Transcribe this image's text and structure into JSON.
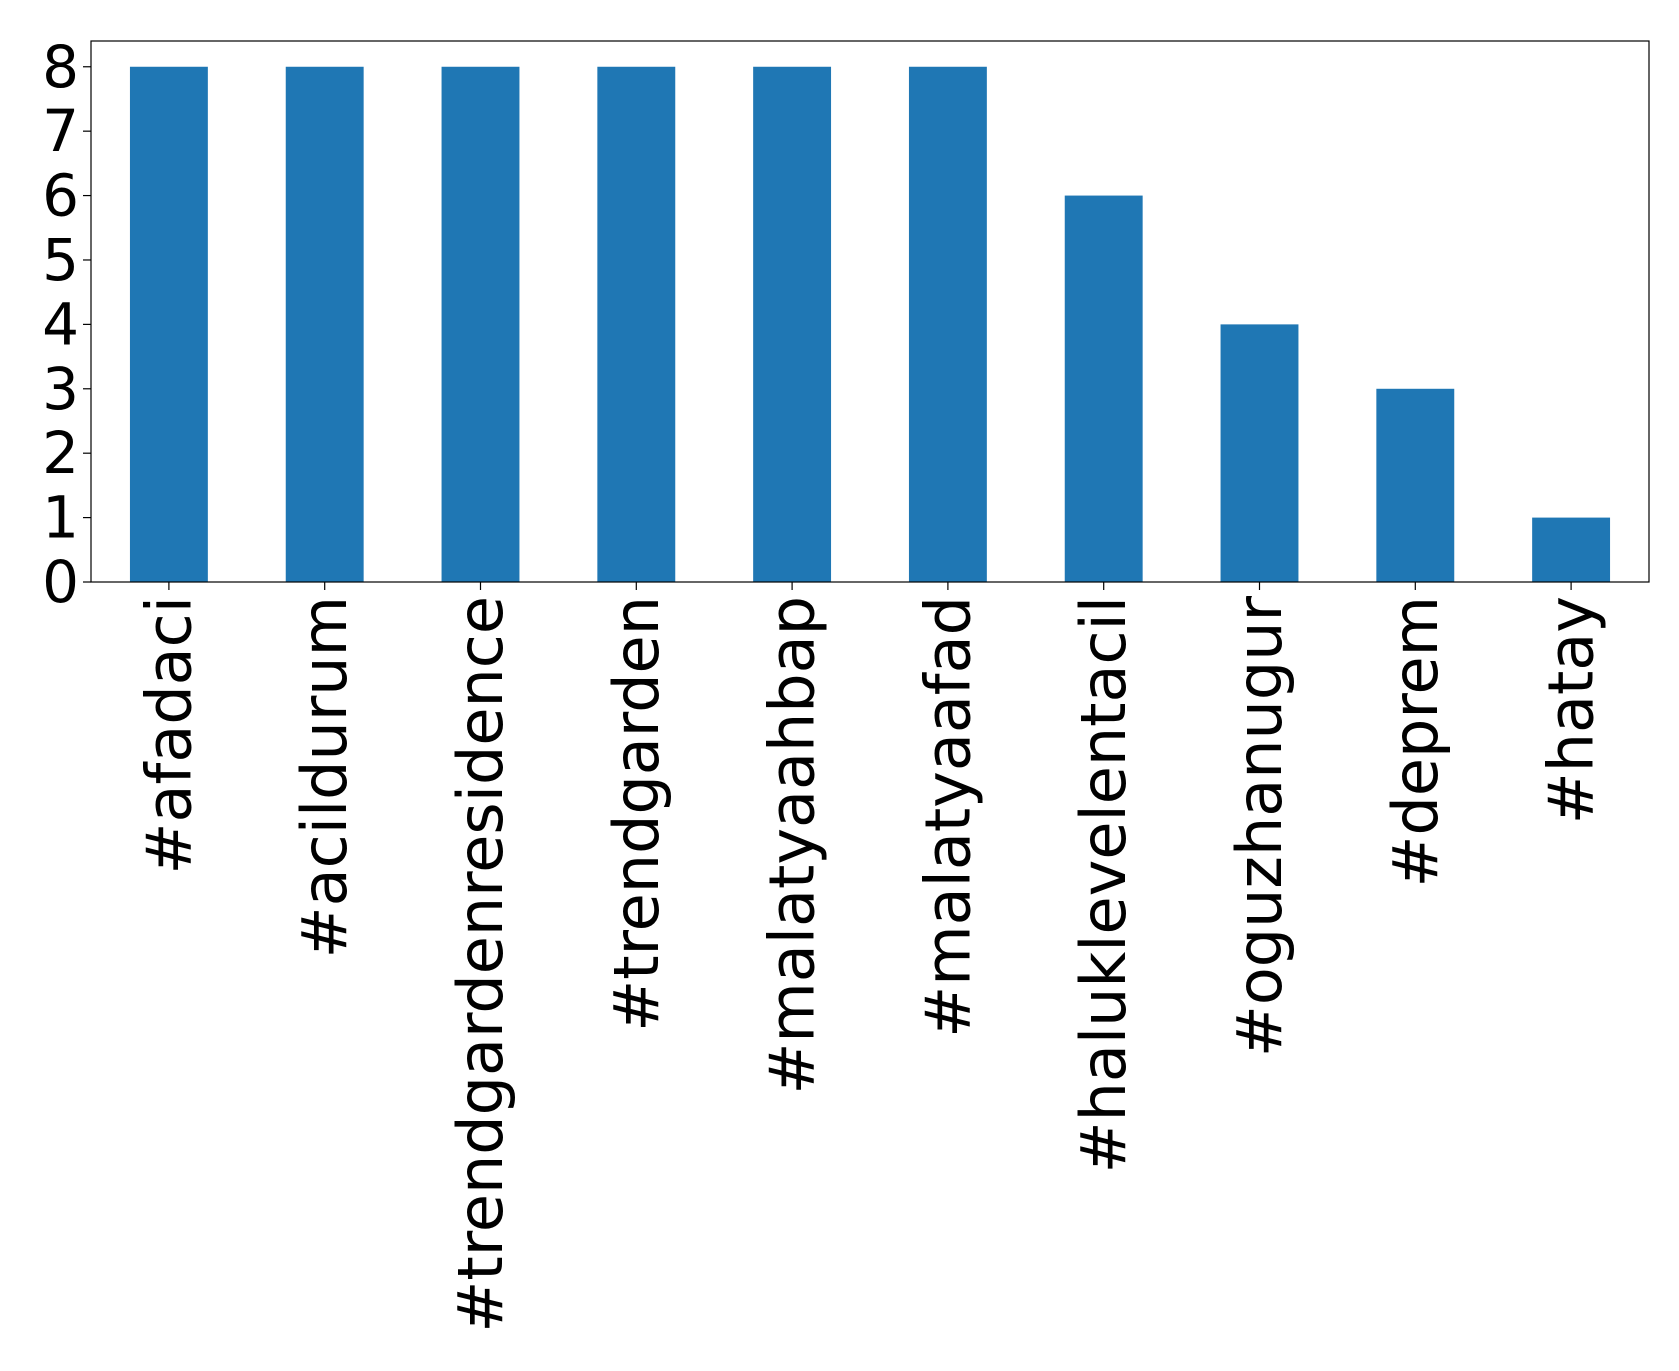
{
  "chart_data": {
    "type": "bar",
    "categories": [
      "#afadaci",
      "#acildurum",
      "#trendgardenresidence",
      "#trendgarden",
      "#malatyaahbap",
      "#malatyaafad",
      "#haluklevelentacil",
      "#oguzhanugur",
      "#deprem",
      "#hatay"
    ],
    "values": [
      8,
      8,
      8,
      8,
      8,
      8,
      6,
      4,
      3,
      1
    ],
    "color": "#1f77b4",
    "ylim": [
      0,
      8.4
    ],
    "yticks": [
      0,
      1,
      2,
      3,
      4,
      5,
      6,
      7,
      8
    ],
    "grid": false
  }
}
